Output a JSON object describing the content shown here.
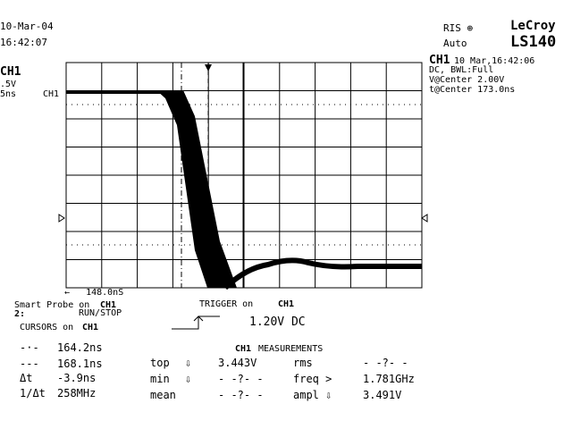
{
  "header": {
    "date": "10-Mar-04",
    "time": "16:42:07",
    "acq_mode": "RIS ⊕",
    "trigger_mode": "Auto",
    "brand": "LeCroy",
    "model": "LS140"
  },
  "channel": {
    "name": "CH1",
    "scale": ".5V",
    "timebase": "5ns",
    "trace_marker": "CH1"
  },
  "info": {
    "channel": "CH1",
    "date_time": "10 Mar,16:42:06",
    "coupling": "DC, BWL:Full",
    "v_center": "V@Center 2.00V",
    "t_center": "t@Center 173.0ns"
  },
  "trigger_delay": "←   148.0nS",
  "probe": {
    "text": "Smart Probe on",
    "channel": "CH1",
    "button": "2:",
    "action": "RUN/STOP"
  },
  "trigger": {
    "text": "TRIGGER on",
    "channel": "CH1",
    "level": "1.20V DC"
  },
  "cursors": {
    "text": "CURSORS on",
    "channel": "CH1",
    "rows": [
      {
        "symbol": "-·-",
        "value": "164.2ns"
      },
      {
        "symbol": "---",
        "value": "168.1ns"
      },
      {
        "symbol": "Δt",
        "value": "-3.9ns"
      },
      {
        "symbol": "1/Δt",
        "value": "258MHz"
      }
    ]
  },
  "measurements": {
    "channel": "CH1",
    "title": "MEASUREMENTS",
    "left": [
      {
        "label": "top",
        "flag": "⇩",
        "value": "3.443V"
      },
      {
        "label": "min",
        "flag": "⇩",
        "value": "- -?- -"
      },
      {
        "label": "mean",
        "value": "- -?- -"
      }
    ],
    "right": [
      {
        "label": "rms",
        "value": "- -?- -"
      },
      {
        "label": "freq >",
        "value": "1.781GHz"
      },
      {
        "label": "ampl ⇩",
        "value": "3.491V"
      }
    ]
  }
}
